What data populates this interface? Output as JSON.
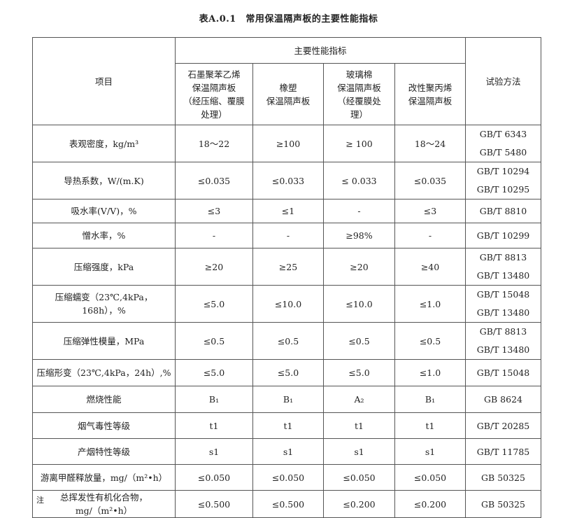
{
  "title": "表A.0.1　常用保温隔声板的主要性能指标",
  "header": {
    "item": "项目",
    "group": "主要性能指标",
    "method": "试验方法",
    "materials": [
      [
        "石墨聚苯乙烯",
        "保温隔声板",
        "（经压缩、覆膜",
        "处理）"
      ],
      [
        "橡塑",
        "保温隔声板"
      ],
      [
        "玻璃棉",
        "保温隔声板",
        "（经覆膜处",
        "理）"
      ],
      [
        "改性聚丙烯",
        "保温隔声板"
      ]
    ]
  },
  "rows": [
    {
      "item": [
        "表观密度，kg/m³"
      ],
      "values": [
        "18～22",
        "≥100",
        "≥ 100",
        "18～24"
      ],
      "method": [
        "GB/T 6343",
        "GB/T 5480"
      ]
    },
    {
      "item": [
        "导热系数，W/(m.K)"
      ],
      "values": [
        "≤0.035",
        "≤0.033",
        "≤ 0.033",
        "≤0.035"
      ],
      "method": [
        "GB/T 10294",
        "GB/T 10295"
      ]
    },
    {
      "item": [
        "吸水率(V/V)，%"
      ],
      "values": [
        "≤3",
        "≤1",
        "-",
        "≤3"
      ],
      "method": [
        "GB/T 8810"
      ]
    },
    {
      "item": [
        "憎水率，%"
      ],
      "values": [
        "-",
        "-",
        "≥98%",
        "-"
      ],
      "method": [
        "GB/T 10299"
      ]
    },
    {
      "item": [
        "压缩强度，kPa"
      ],
      "values": [
        "≥20",
        "≥25",
        "≥20",
        "≥40"
      ],
      "method": [
        "GB/T 8813",
        "GB/T 13480"
      ]
    },
    {
      "item": [
        "压缩蠕变（23℃,4kPa，",
        "168h），%"
      ],
      "values": [
        "≤5.0",
        "≤10.0",
        "≤10.0",
        "≤1.0"
      ],
      "method": [
        "GB/T 15048",
        "GB/T 13480"
      ]
    },
    {
      "item": [
        "压缩弹性模量，MPa"
      ],
      "values": [
        "≤0.5",
        "≤0.5",
        "≤0.5",
        "≤0.5"
      ],
      "method": [
        "GB/T 8813",
        "GB/T 13480"
      ]
    },
    {
      "item": [
        "压缩形变（23℃,4kPa，24h）,%"
      ],
      "values": [
        "≤5.0",
        "≤5.0",
        "≤5.0",
        "≤1.0"
      ],
      "method": [
        "GB/T 15048"
      ]
    },
    {
      "item": [
        "燃烧性能"
      ],
      "values": [
        "B₁",
        "B₁",
        "A₂",
        "B₁"
      ],
      "method": [
        "GB 8624"
      ]
    },
    {
      "item": [
        "烟气毒性等级"
      ],
      "values": [
        "t1",
        "t1",
        "t1",
        "t1"
      ],
      "method": [
        "GB/T 20285"
      ]
    },
    {
      "item": [
        "产烟特性等级"
      ],
      "values": [
        "s1",
        "s1",
        "s1",
        "s1"
      ],
      "method": [
        "GB/T 11785"
      ]
    },
    {
      "item": [
        "游离甲醛释放量，mg/（m²•h）"
      ],
      "values": [
        "≤0.050",
        "≤0.050",
        "≤0.050",
        "≤0.050"
      ],
      "method": [
        "GB 50325"
      ]
    },
    {
      "item": [
        "总挥发性有机化合物，",
        "mg/（m²•h）"
      ],
      "values": [
        "≤0.500",
        "≤0.500",
        "≤0.200",
        "≤0.200"
      ],
      "method": [
        "GB 50325"
      ]
    }
  ],
  "note": "注"
}
